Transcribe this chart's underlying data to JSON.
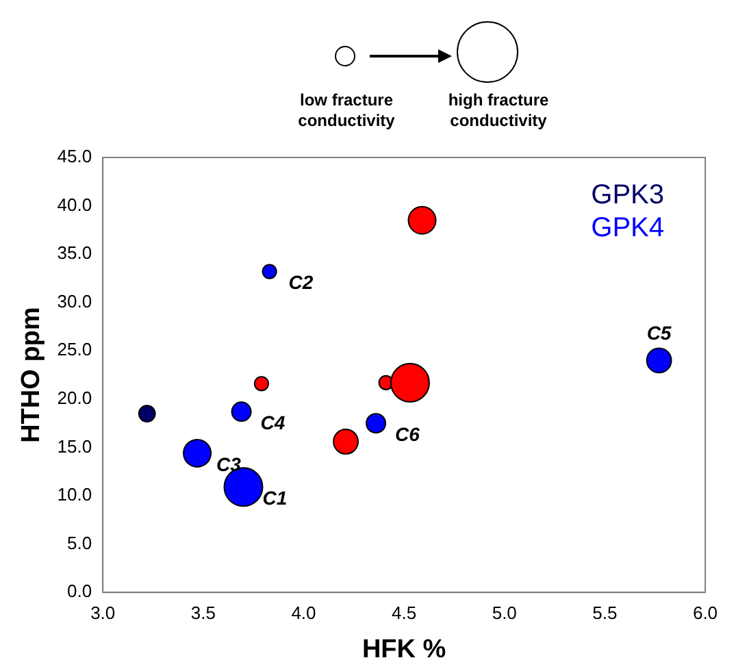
{
  "chart_data": {
    "type": "bubble",
    "xlabel": "HFK %",
    "ylabel": "HTHO ppm",
    "xlim": [
      3.0,
      6.0
    ],
    "xticks": [
      {
        "value": 3,
        "label": "3.0"
      },
      {
        "value": 3.5,
        "label": "3.5"
      },
      {
        "value": 4,
        "label": "4.0"
      },
      {
        "value": 4.5,
        "label": "4.5"
      },
      {
        "value": 5,
        "label": "5.0"
      },
      {
        "value": 5.5,
        "label": "5.5"
      },
      {
        "value": 6,
        "label": "6.0"
      }
    ],
    "ylim": [
      0,
      45
    ],
    "yticks": [
      {
        "value": 0,
        "label": "0.0"
      },
      {
        "value": 5,
        "label": "5.0"
      },
      {
        "value": 10,
        "label": "10.0"
      },
      {
        "value": 15,
        "label": "15.0"
      },
      {
        "value": 20,
        "label": "20.0"
      },
      {
        "value": 25,
        "label": "25.0"
      },
      {
        "value": 30,
        "label": "30.0"
      },
      {
        "value": 35,
        "label": "35.0"
      },
      {
        "value": 40,
        "label": "40.0"
      },
      {
        "value": 45,
        "label": "45.0"
      }
    ],
    "series": [
      {
        "name": "GPK3",
        "color": "#000066",
        "x": [
          3.22
        ],
        "values": [
          18.5
        ],
        "sizes": [
          0.18
        ]
      },
      {
        "name": "GPK4",
        "color": "#0000ff",
        "x": [
          3.83,
          5.77,
          3.69,
          3.47,
          4.36,
          3.7
        ],
        "values": [
          33.2,
          24.0,
          18.7,
          14.4,
          17.5,
          10.9
        ],
        "sizes": [
          0.13,
          0.41,
          0.25,
          0.51,
          0.25,
          1
        ]
      },
      {
        "color": "#ff0000",
        "x": [
          3.79,
          4.21,
          4.41,
          4.53,
          4.59
        ],
        "values": [
          21.6,
          15.6,
          21.7,
          21.7,
          38.5
        ],
        "sizes": [
          0.13,
          0.41,
          0.13,
          1,
          0.51
        ]
      }
    ],
    "annotations": [
      "low fracture conductivity",
      "high fracture conductivity",
      {
        "text": "C2",
        "x": 3.83,
        "y": 33.2
      },
      {
        "text": "C5",
        "x": 5.77,
        "y": 24.0
      },
      {
        "text": "C4",
        "x": 3.69,
        "y": 18.7
      },
      {
        "text": "C3",
        "x": 3.47,
        "y": 14.4
      },
      {
        "text": "C6",
        "x": 4.36,
        "y": 17.5
      },
      {
        "text": "C1",
        "x": 3.7,
        "y": 10.9
      }
    ],
    "grid": false,
    "legend": "top right"
  }
}
